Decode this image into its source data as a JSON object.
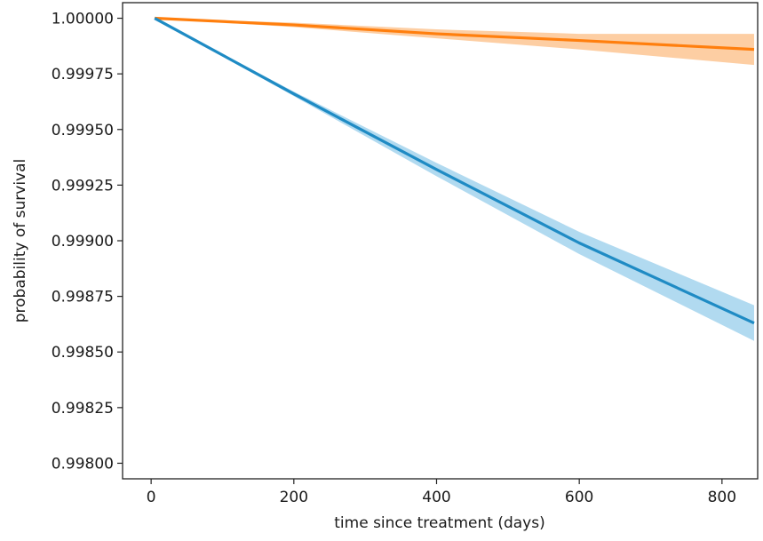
{
  "chart_data": {
    "type": "line",
    "title": "",
    "xlabel": "time since treatment (days)",
    "ylabel": "probability of survival",
    "xlim": [
      -40,
      850
    ],
    "ylim": [
      0.99793,
      1.00007
    ],
    "xticks": [
      0,
      200,
      400,
      600,
      800
    ],
    "xtick_labels": [
      "0",
      "200",
      "400",
      "600",
      "800"
    ],
    "yticks": [
      0.998,
      0.99825,
      0.9985,
      0.99875,
      0.999,
      0.99925,
      0.9995,
      0.99975,
      1.0
    ],
    "ytick_labels": [
      "0.99800",
      "0.99825",
      "0.99850",
      "0.99875",
      "0.99900",
      "0.99925",
      "0.99950",
      "0.99975",
      "1.00000"
    ],
    "grid": false,
    "series": [
      {
        "color": "#ff7f0e",
        "band_color": "#fdc999",
        "x": [
          5,
          200,
          400,
          600,
          845
        ],
        "y": [
          1.0,
          0.99997,
          0.99993,
          0.9999,
          0.99986
        ],
        "lower": [
          1.0,
          0.99996,
          0.99991,
          0.99986,
          0.99979
        ],
        "upper": [
          1.0,
          0.99998,
          0.99995,
          0.99993,
          0.99993
        ]
      },
      {
        "color": "#1f8bc4",
        "band_color": "#a9d6ee",
        "x": [
          5,
          200,
          400,
          600,
          845
        ],
        "y": [
          1.0,
          0.99966,
          0.99932,
          0.99899,
          0.99863
        ],
        "lower": [
          1.0,
          0.99965,
          0.99929,
          0.99894,
          0.99855
        ],
        "upper": [
          1.0,
          0.99967,
          0.99935,
          0.99904,
          0.99871
        ]
      }
    ]
  }
}
